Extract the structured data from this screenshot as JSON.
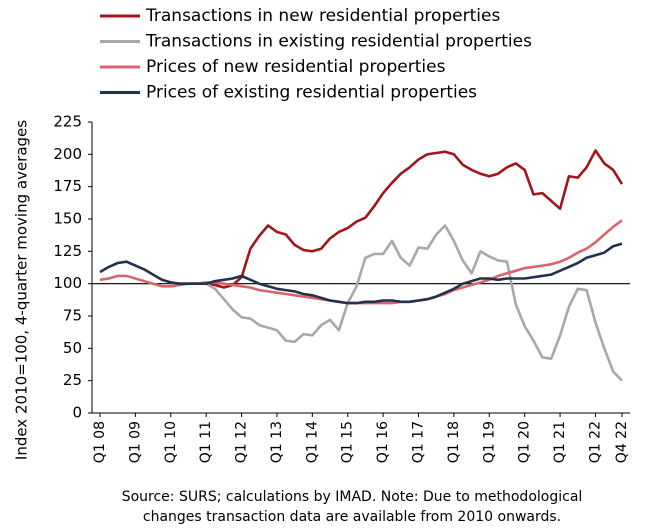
{
  "chart_data": {
    "type": "line",
    "y_label": "Index 2010=100, 4-quarter moving averages",
    "note": [
      "Source: SURS; calculations by IMAD. Note: Due to methodological",
      "changes transaction data are available from 2010 onwards."
    ],
    "categories": [
      "Q1 08",
      null,
      null,
      null,
      "Q1 09",
      null,
      null,
      null,
      "Q1 10",
      null,
      null,
      null,
      "Q1 11",
      null,
      null,
      null,
      "Q1 12",
      null,
      null,
      null,
      "Q1 13",
      null,
      null,
      null,
      "Q1 14",
      null,
      null,
      null,
      "Q1 15",
      null,
      null,
      null,
      "Q1 16",
      null,
      null,
      null,
      "Q1 17",
      null,
      null,
      null,
      "Q1 18",
      null,
      null,
      null,
      "Q1 19",
      null,
      null,
      null,
      "Q1 20",
      null,
      null,
      null,
      "Q1 21",
      null,
      null,
      null,
      "Q1 22",
      null,
      null,
      "Q4 22"
    ],
    "series": [
      {
        "name": "Transactions in new residential properties",
        "color": "#a0161c",
        "values": [
          null,
          null,
          null,
          null,
          null,
          null,
          null,
          null,
          100,
          100,
          100,
          100,
          100,
          99,
          97,
          99,
          105,
          127,
          137,
          145,
          140,
          138,
          130,
          126,
          125,
          127,
          135,
          140,
          143,
          148,
          151,
          160,
          170,
          178,
          185,
          190,
          196,
          200,
          201,
          202,
          200,
          192,
          188,
          185,
          183,
          185,
          190,
          193,
          188,
          169,
          170,
          164,
          158,
          183,
          182,
          190,
          203,
          193,
          188,
          177
        ]
      },
      {
        "name": "Transactions in existing residential properties",
        "color": "#a6a8ab",
        "values": [
          null,
          null,
          null,
          null,
          null,
          null,
          null,
          null,
          100,
          100,
          100,
          100,
          100,
          96,
          88,
          80,
          74,
          73,
          68,
          66,
          64,
          56,
          55,
          61,
          60,
          68,
          72,
          64,
          85,
          98,
          120,
          123,
          123,
          133,
          120,
          114,
          128,
          127,
          138,
          145,
          133,
          118,
          108,
          125,
          121,
          118,
          117,
          84,
          67,
          56,
          43,
          42,
          60,
          82,
          96,
          95,
          70,
          50,
          32,
          25
        ]
      },
      {
        "name": "Prices of new residential properties",
        "color": "#d9646a",
        "values": [
          103,
          104,
          106,
          106,
          104,
          102,
          100,
          98,
          98,
          99,
          100,
          100,
          101,
          101,
          100,
          99,
          98,
          97,
          95,
          94,
          93,
          92,
          91,
          90,
          89,
          88,
          87,
          86,
          85,
          85,
          85,
          85,
          85,
          85,
          86,
          86,
          87,
          88,
          90,
          92,
          95,
          97,
          99,
          101,
          103,
          106,
          108,
          110,
          112,
          113,
          114,
          115,
          117,
          120,
          124,
          127,
          132,
          138,
          144,
          149
        ]
      },
      {
        "name": "Prices of existing residential properties",
        "color": "#24304f",
        "values": [
          109,
          113,
          116,
          117,
          114,
          111,
          107,
          103,
          101,
          100,
          100,
          100,
          100,
          102,
          103,
          104,
          106,
          103,
          100,
          98,
          96,
          95,
          94,
          92,
          91,
          89,
          87,
          86,
          85,
          85,
          86,
          86,
          87,
          87,
          86,
          86,
          87,
          88,
          90,
          93,
          96,
          100,
          102,
          104,
          104,
          103,
          104,
          104,
          104,
          105,
          106,
          107,
          110,
          113,
          116,
          120,
          122,
          124,
          129,
          131
        ]
      }
    ],
    "reference_line": 100,
    "ylim": [
      0,
      225
    ],
    "yticks": [
      0,
      25,
      50,
      75,
      100,
      125,
      150,
      175,
      200,
      225
    ],
    "legend": "top"
  }
}
